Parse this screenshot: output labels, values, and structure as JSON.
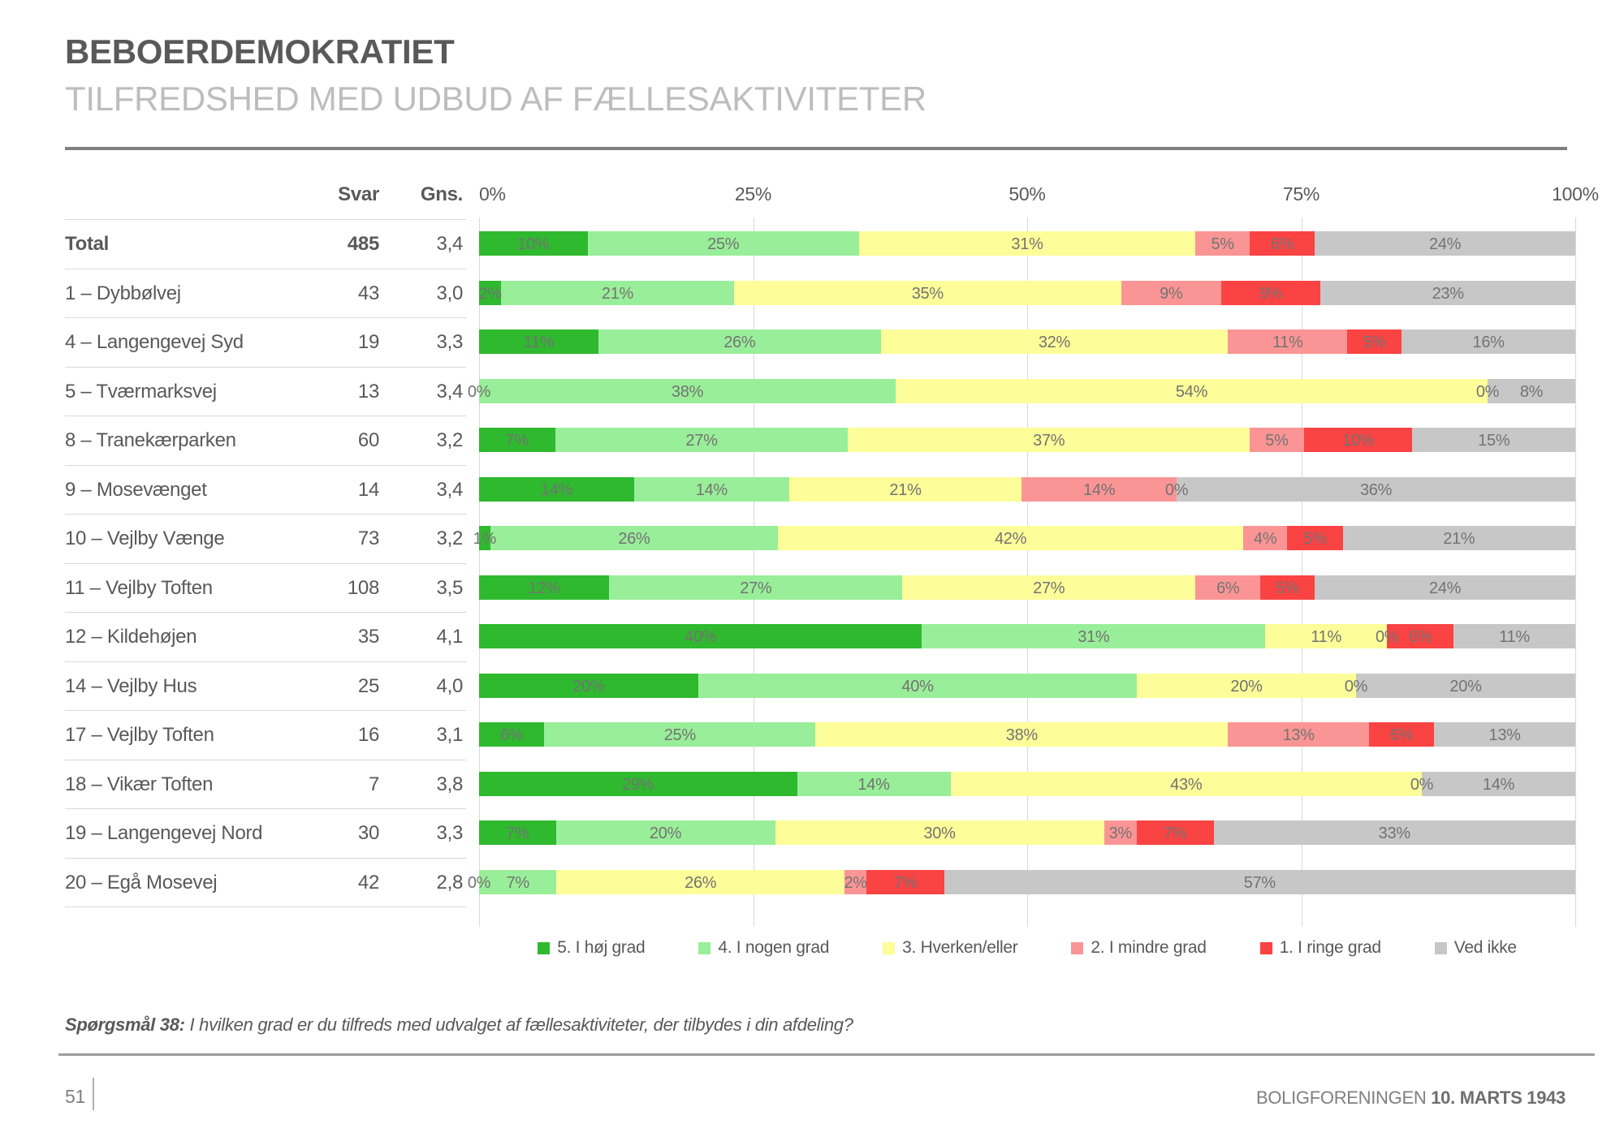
{
  "header": {
    "title": "BEBOERDEMOKRATIET",
    "subtitle": "TILFREDSHED MED UDBUD AF FÆLLESAKTIVITETER"
  },
  "table": {
    "col_svar": "Svar",
    "col_gns": "Gns."
  },
  "chart_data": {
    "type": "bar",
    "orientation": "horizontal",
    "stacked": true,
    "xlim": [
      0,
      100
    ],
    "x_ticks": [
      "0%",
      "25%",
      "50%",
      "75%",
      "100%"
    ],
    "grid": true,
    "legend_position": "bottom",
    "legend": [
      {
        "label": "5. I høj grad",
        "color": "#2eb92e"
      },
      {
        "label": "4. I nogen grad",
        "color": "#99ee99"
      },
      {
        "label": "3. Hverken/eller",
        "color": "#fdfd99"
      },
      {
        "label": "2. I mindre grad",
        "color": "#fb9595"
      },
      {
        "label": "1. I ringe grad",
        "color": "#fa4343"
      },
      {
        "label": "Ved ikke",
        "color": "#c7c7c7"
      }
    ],
    "rows": [
      {
        "label": "Total",
        "svar": "485",
        "gns": "3,4",
        "bold": true,
        "values": [
          10,
          25,
          31,
          5,
          6,
          24
        ]
      },
      {
        "label": "1 – Dybbølvej",
        "svar": "43",
        "gns": "3,0",
        "bold": false,
        "values": [
          2,
          21,
          35,
          9,
          9,
          23
        ]
      },
      {
        "label": "4 – Langengevej Syd",
        "svar": "19",
        "gns": "3,3",
        "bold": false,
        "values": [
          11,
          26,
          32,
          11,
          5,
          16
        ]
      },
      {
        "label": "5 – Tværmarksvej",
        "svar": "13",
        "gns": "3,4",
        "bold": false,
        "values": [
          0,
          38,
          54,
          0,
          0,
          8
        ]
      },
      {
        "label": "8 – Tranekærparken",
        "svar": "60",
        "gns": "3,2",
        "bold": false,
        "values": [
          7,
          27,
          37,
          5,
          10,
          15
        ]
      },
      {
        "label": "9 – Mosevænget",
        "svar": "14",
        "gns": "3,4",
        "bold": false,
        "values": [
          14,
          14,
          21,
          14,
          0,
          36
        ]
      },
      {
        "label": "10 – Vejlby Vænge",
        "svar": "73",
        "gns": "3,2",
        "bold": false,
        "values": [
          1,
          26,
          42,
          4,
          5,
          21
        ]
      },
      {
        "label": "11 – Vejlby Toften",
        "svar": "108",
        "gns": "3,5",
        "bold": false,
        "values": [
          12,
          27,
          27,
          6,
          5,
          24
        ]
      },
      {
        "label": "12 – Kildehøjen",
        "svar": "35",
        "gns": "4,1",
        "bold": false,
        "values": [
          40,
          31,
          11,
          0,
          6,
          11
        ]
      },
      {
        "label": "14 – Vejlby Hus",
        "svar": "25",
        "gns": "4,0",
        "bold": false,
        "values": [
          20,
          40,
          20,
          0,
          0,
          20
        ]
      },
      {
        "label": "17 – Vejlby Toften",
        "svar": "16",
        "gns": "3,1",
        "bold": false,
        "values": [
          6,
          25,
          38,
          13,
          6,
          13
        ]
      },
      {
        "label": "18 – Vikær Toften",
        "svar": "7",
        "gns": "3,8",
        "bold": false,
        "values": [
          29,
          14,
          43,
          0,
          0,
          14
        ]
      },
      {
        "label": "19 – Langengevej Nord",
        "svar": "30",
        "gns": "3,3",
        "bold": false,
        "values": [
          7,
          20,
          30,
          3,
          7,
          33
        ]
      },
      {
        "label": "20 – Egå Mosevej",
        "svar": "42",
        "gns": "2,8",
        "bold": false,
        "values": [
          0,
          7,
          26,
          2,
          7,
          57
        ]
      }
    ]
  },
  "footnote": {
    "prefix": "Spørgsmål 38:",
    "text": "I hvilken grad er du tilfreds med udvalget af fællesaktiviteter, der tilbydes i din afdeling?"
  },
  "footer": {
    "page": "51",
    "org": "BOLIGFORENINGEN",
    "date": "10. MARTS 1943"
  }
}
